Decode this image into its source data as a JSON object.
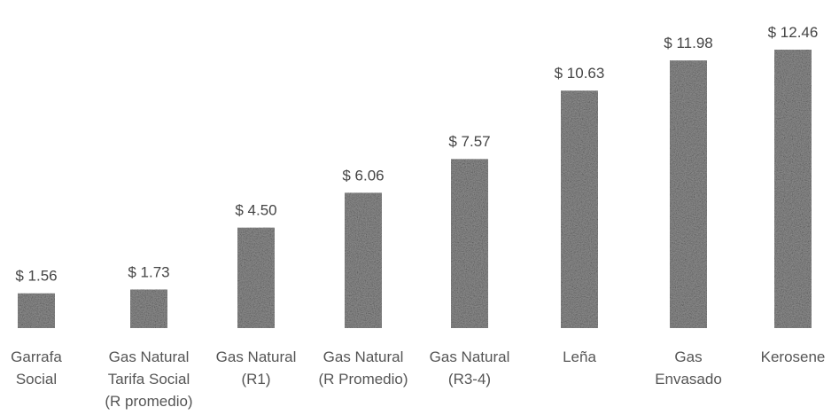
{
  "chart_data": {
    "type": "bar",
    "title": "",
    "xlabel": "",
    "ylabel": "",
    "ylim": [
      0,
      12.46
    ],
    "grid": false,
    "legend": "none",
    "categories": [
      [
        "Garrafa",
        "Social"
      ],
      [
        "Gas Natural",
        "Tarifa Social",
        "(R promedio)"
      ],
      [
        "Gas Natural",
        "(R1)"
      ],
      [
        "Gas Natural",
        "(R Promedio)"
      ],
      [
        "Gas Natural",
        "(R3-4)"
      ],
      [
        "Leña"
      ],
      [
        "Gas",
        "Envasado"
      ],
      [
        "Kerosene"
      ]
    ],
    "values": [
      1.56,
      1.73,
      4.5,
      6.06,
      7.57,
      10.63,
      11.98,
      12.46
    ],
    "data_labels": [
      "$ 1.56",
      "$ 1.73",
      "$ 4.50",
      "$ 6.06",
      "$ 7.57",
      "$ 10.63",
      "$ 11.98",
      "$ 12.46"
    ],
    "colors": {
      "bar": "#8c8c8c",
      "bar_speckle_dark": "#3c3c3c",
      "bar_speckle_light": "#c8c8c8"
    }
  }
}
